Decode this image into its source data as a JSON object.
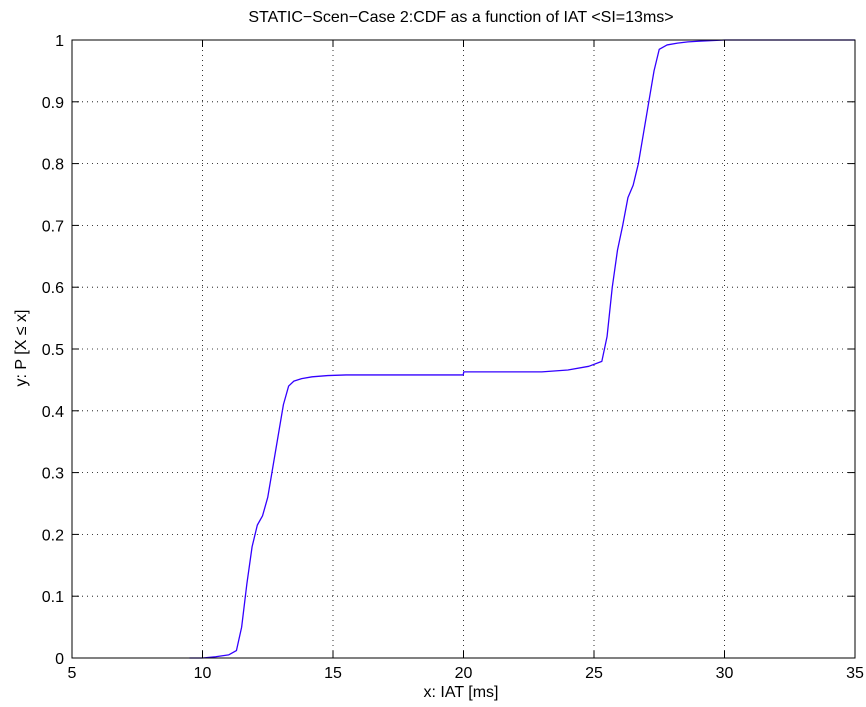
{
  "chart_data": {
    "type": "line",
    "title": "STATIC−Scen−Case 2:CDF as a function of IAT <SI=13ms>",
    "xlabel": "x: IAT [ms]",
    "ylabel": "y: P [X ≤ x]",
    "xlim": [
      5,
      35
    ],
    "ylim": [
      0,
      1
    ],
    "xticks": [
      5,
      10,
      15,
      20,
      25,
      30,
      35
    ],
    "yticks": [
      0,
      0.1,
      0.2,
      0.3,
      0.4,
      0.5,
      0.6,
      0.7,
      0.8,
      0.9,
      1
    ],
    "xtick_labels": [
      "5",
      "10",
      "15",
      "20",
      "25",
      "30",
      "35"
    ],
    "ytick_labels": [
      "0",
      "0.1",
      "0.2",
      "0.3",
      "0.4",
      "0.5",
      "0.6",
      "0.7",
      "0.8",
      "0.9",
      "1"
    ],
    "grid": true,
    "grid_style": "dotted",
    "legend": "none",
    "series": [
      {
        "color": "#3300ff",
        "x": [
          9.5,
          10.0,
          10.5,
          11.0,
          11.3,
          11.5,
          11.7,
          11.9,
          12.1,
          12.3,
          12.5,
          12.7,
          12.9,
          13.1,
          13.3,
          13.5,
          13.8,
          14.2,
          14.8,
          15.5,
          17.0,
          19.0,
          19.99,
          20.01,
          21.0,
          22.0,
          23.0,
          24.0,
          24.8,
          25.3,
          25.5,
          25.7,
          25.9,
          26.1,
          26.3,
          26.5,
          26.7,
          26.9,
          27.1,
          27.3,
          27.5,
          27.8,
          28.2,
          28.6,
          29.0,
          29.5,
          30.0,
          32.0,
          35.0
        ],
        "y": [
          0.0,
          0.0,
          0.002,
          0.005,
          0.012,
          0.05,
          0.12,
          0.18,
          0.215,
          0.23,
          0.26,
          0.31,
          0.36,
          0.41,
          0.44,
          0.448,
          0.452,
          0.455,
          0.457,
          0.458,
          0.458,
          0.458,
          0.458,
          0.463,
          0.463,
          0.463,
          0.463,
          0.466,
          0.472,
          0.48,
          0.52,
          0.6,
          0.66,
          0.7,
          0.745,
          0.765,
          0.8,
          0.85,
          0.9,
          0.95,
          0.985,
          0.992,
          0.995,
          0.997,
          0.998,
          0.999,
          1.0,
          1.0,
          1.0
        ]
      }
    ]
  }
}
